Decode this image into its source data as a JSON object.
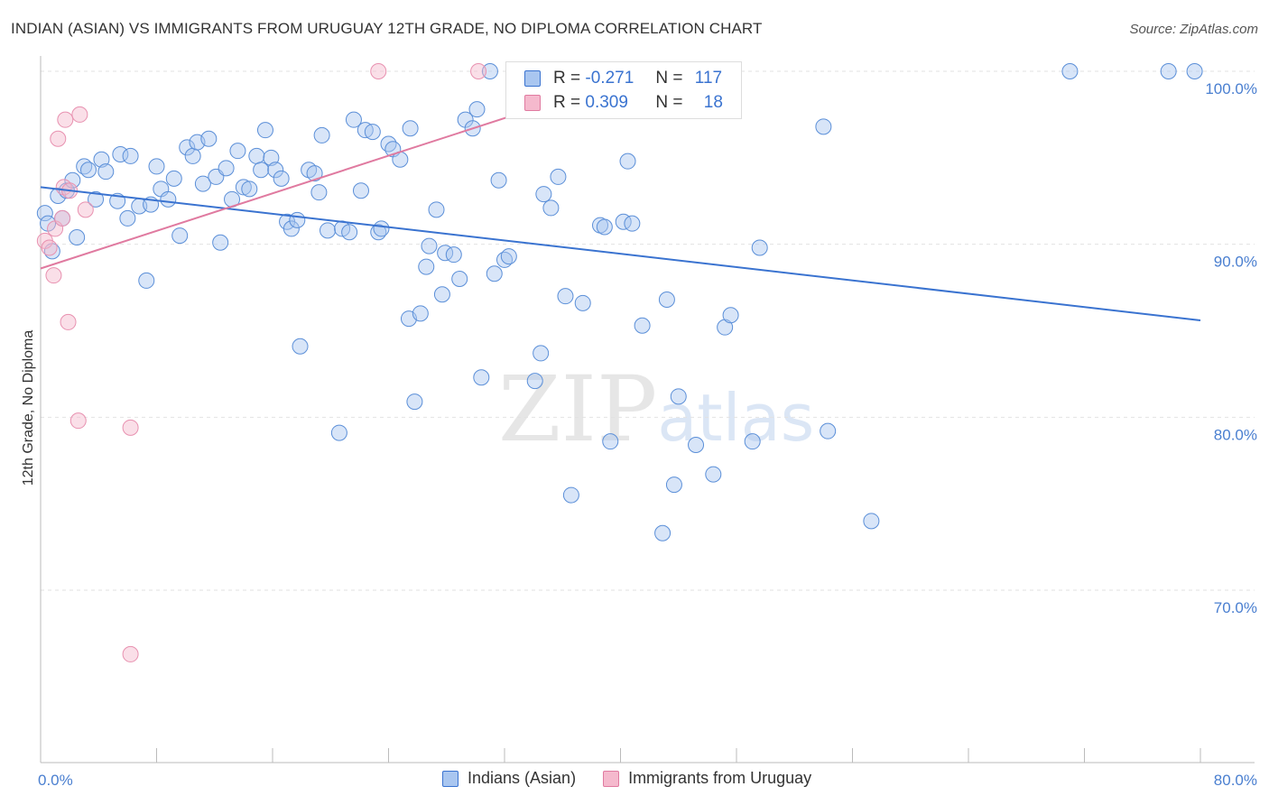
{
  "title": "INDIAN (ASIAN) VS IMMIGRANTS FROM URUGUAY 12TH GRADE, NO DIPLOMA CORRELATION CHART",
  "source": "Source: ZipAtlas.com",
  "watermark": {
    "zip": "ZIP",
    "atlas": "atlas"
  },
  "colors": {
    "blue": "#3a73d0",
    "blue_fill": "#a9c6f0",
    "pink": "#e07aa0",
    "pink_fill": "#f5b9cd"
  },
  "legend": {
    "r_label": "R =",
    "n_label": "N =",
    "rows": [
      {
        "r": "-0.271",
        "n": "117"
      },
      {
        "r": "0.309",
        "n": "18"
      }
    ]
  },
  "bottom_legend": [
    "Indians (Asian)",
    "Immigrants from Uruguay"
  ],
  "chart_data": {
    "type": "scatter",
    "xlabel": "",
    "ylabel": "12th Grade, No Diploma",
    "xlim": [
      0,
      80
    ],
    "ylim": [
      62,
      101.5
    ],
    "x_tick_labels": [
      "0.0%",
      "80.0%"
    ],
    "y_ticks": [
      70,
      80,
      90,
      100
    ],
    "y_tick_labels": [
      "70.0%",
      "80.0%",
      "90.0%",
      "100.0%"
    ],
    "grid": true,
    "series": [
      {
        "name": "Indians (Asian)",
        "color": "#3a73d0",
        "trend": [
          [
            0,
            93.3
          ],
          [
            80,
            85.6
          ]
        ],
        "points": [
          [
            0.3,
            91.8
          ],
          [
            0.5,
            91.2
          ],
          [
            0.8,
            89.6
          ],
          [
            1.2,
            92.8
          ],
          [
            1.5,
            91.5
          ],
          [
            1.8,
            93.1
          ],
          [
            2.2,
            93.7
          ],
          [
            2.5,
            90.4
          ],
          [
            3.0,
            94.5
          ],
          [
            3.3,
            94.3
          ],
          [
            3.8,
            92.6
          ],
          [
            4.2,
            94.9
          ],
          [
            4.5,
            94.2
          ],
          [
            5.3,
            92.5
          ],
          [
            5.5,
            95.2
          ],
          [
            6.0,
            91.5
          ],
          [
            6.2,
            95.1
          ],
          [
            6.8,
            92.2
          ],
          [
            7.3,
            87.9
          ],
          [
            7.6,
            92.3
          ],
          [
            8.0,
            94.5
          ],
          [
            8.3,
            93.2
          ],
          [
            8.8,
            92.6
          ],
          [
            9.2,
            93.8
          ],
          [
            9.6,
            90.5
          ],
          [
            10.1,
            95.6
          ],
          [
            10.5,
            95.1
          ],
          [
            10.8,
            95.9
          ],
          [
            11.2,
            93.5
          ],
          [
            11.6,
            96.1
          ],
          [
            12.1,
            93.9
          ],
          [
            12.4,
            90.1
          ],
          [
            12.8,
            94.4
          ],
          [
            13.2,
            92.6
          ],
          [
            13.6,
            95.4
          ],
          [
            14.0,
            93.3
          ],
          [
            14.4,
            93.2
          ],
          [
            14.9,
            95.1
          ],
          [
            15.2,
            94.3
          ],
          [
            15.5,
            96.6
          ],
          [
            15.9,
            95.0
          ],
          [
            16.2,
            94.3
          ],
          [
            16.6,
            93.8
          ],
          [
            17.0,
            91.3
          ],
          [
            17.3,
            90.9
          ],
          [
            17.7,
            91.4
          ],
          [
            17.9,
            84.1
          ],
          [
            18.5,
            94.3
          ],
          [
            18.9,
            94.1
          ],
          [
            19.2,
            93.0
          ],
          [
            19.4,
            96.3
          ],
          [
            19.8,
            90.8
          ],
          [
            20.6,
            79.1
          ],
          [
            20.8,
            90.9
          ],
          [
            21.3,
            90.7
          ],
          [
            21.6,
            97.2
          ],
          [
            22.1,
            93.1
          ],
          [
            22.4,
            96.6
          ],
          [
            22.9,
            96.5
          ],
          [
            23.3,
            90.7
          ],
          [
            23.5,
            90.9
          ],
          [
            24.0,
            95.8
          ],
          [
            24.3,
            95.5
          ],
          [
            24.8,
            94.9
          ],
          [
            25.5,
            96.7
          ],
          [
            25.8,
            80.9
          ],
          [
            25.4,
            85.7
          ],
          [
            26.2,
            86.0
          ],
          [
            26.6,
            88.7
          ],
          [
            26.8,
            89.9
          ],
          [
            27.3,
            92.0
          ],
          [
            27.7,
            87.1
          ],
          [
            27.9,
            89.5
          ],
          [
            28.5,
            89.4
          ],
          [
            28.9,
            88.0
          ],
          [
            29.3,
            97.2
          ],
          [
            29.8,
            96.7
          ],
          [
            30.1,
            97.8
          ],
          [
            30.4,
            82.3
          ],
          [
            31.0,
            100.0
          ],
          [
            31.3,
            88.3
          ],
          [
            31.6,
            93.7
          ],
          [
            32.0,
            89.1
          ],
          [
            32.3,
            89.3
          ],
          [
            34.1,
            82.1
          ],
          [
            34.5,
            83.7
          ],
          [
            34.7,
            92.9
          ],
          [
            35.2,
            92.1
          ],
          [
            35.7,
            93.9
          ],
          [
            36.2,
            87.0
          ],
          [
            36.6,
            75.5
          ],
          [
            37.4,
            86.6
          ],
          [
            38.6,
            91.1
          ],
          [
            38.9,
            91.0
          ],
          [
            39.3,
            78.6
          ],
          [
            40.2,
            91.3
          ],
          [
            40.5,
            94.8
          ],
          [
            40.8,
            91.2
          ],
          [
            41.5,
            85.3
          ],
          [
            43.2,
            86.8
          ],
          [
            43.7,
            76.1
          ],
          [
            44.0,
            81.2
          ],
          [
            42.9,
            73.3
          ],
          [
            45.2,
            78.4
          ],
          [
            46.4,
            76.7
          ],
          [
            47.2,
            85.2
          ],
          [
            47.6,
            85.9
          ],
          [
            47.0,
            100.0
          ],
          [
            49.1,
            78.6
          ],
          [
            49.6,
            89.8
          ],
          [
            54.0,
            96.8
          ],
          [
            54.3,
            79.2
          ],
          [
            57.3,
            74.0
          ],
          [
            71.0,
            100.0
          ],
          [
            77.8,
            100.0
          ],
          [
            79.6,
            100.0
          ]
        ]
      },
      {
        "name": "Immigrants from Uruguay",
        "color": "#e07aa0",
        "trend": [
          [
            0,
            88.6
          ],
          [
            40.5,
            99.6
          ]
        ],
        "points": [
          [
            0.3,
            90.2
          ],
          [
            0.6,
            89.8
          ],
          [
            0.9,
            88.2
          ],
          [
            1.0,
            90.9
          ],
          [
            1.2,
            96.1
          ],
          [
            1.5,
            91.5
          ],
          [
            1.6,
            93.3
          ],
          [
            1.7,
            97.2
          ],
          [
            1.9,
            85.5
          ],
          [
            2.0,
            93.1
          ],
          [
            2.6,
            79.8
          ],
          [
            2.7,
            97.5
          ],
          [
            3.1,
            92.0
          ],
          [
            6.2,
            79.4
          ],
          [
            6.2,
            66.3
          ],
          [
            23.3,
            100.0
          ],
          [
            30.2,
            100.0
          ],
          [
            39.8,
            100.0
          ]
        ]
      }
    ]
  }
}
